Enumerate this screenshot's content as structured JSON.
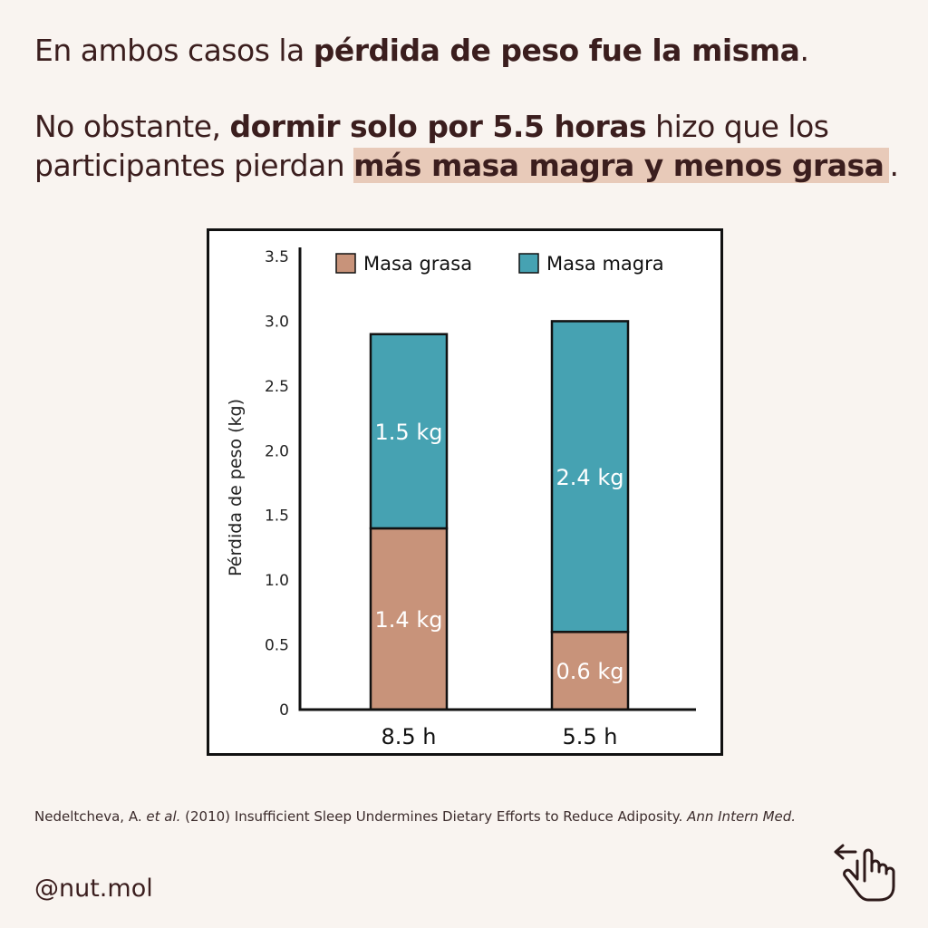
{
  "headline": {
    "p1_pre": "En ambos casos la ",
    "p1_bold": "pérdida de peso fue la misma",
    "p1_post": ".",
    "p2_pre": "No obstante, ",
    "p2_bold": "dormir solo por 5.5 horas",
    "p2_mid": " hizo que los participantes pierdan ",
    "p2_highlight": "más masa magra y menos grasa",
    "p2_post": "."
  },
  "chart_data": {
    "type": "bar",
    "stacked": true,
    "categories": [
      "8.5 h",
      "5.5 h"
    ],
    "series": [
      {
        "name": "Masa grasa",
        "values": [
          1.4,
          0.6
        ],
        "labels": [
          "1.4 kg",
          "0.6 kg"
        ],
        "color": "#c8937a"
      },
      {
        "name": "Masa magra",
        "values": [
          1.5,
          2.4
        ],
        "labels": [
          "1.5 kg",
          "2.4 kg"
        ],
        "color": "#46a2b2"
      }
    ],
    "ylabel": "Pérdida de peso (kg)",
    "xlabel": "",
    "ylim": [
      0,
      3.5
    ],
    "yticks": [
      "0",
      "0.5",
      "1.0",
      "1.5",
      "2.0",
      "2.5",
      "3.0",
      "3.5"
    ],
    "grid": false,
    "legend": "top"
  },
  "citation": {
    "text": "Nedeltcheva, A. ",
    "etal": "et al.",
    "rest": " (2010) Insufficient Sleep Undermines Dietary Efforts to Reduce Adiposity. ",
    "journal": "Ann Intern Med."
  },
  "handle": "@nut.mol",
  "icons": {
    "swipe": "swipe-left-hand-icon"
  }
}
